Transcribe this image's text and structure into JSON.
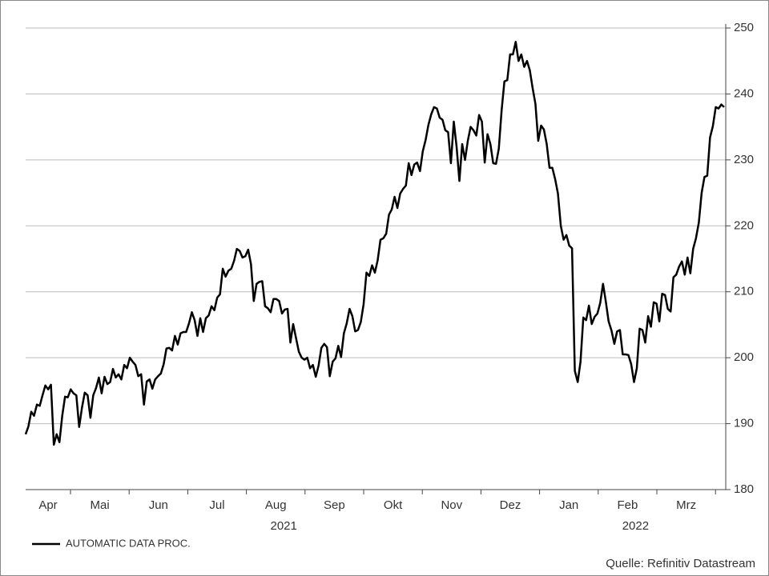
{
  "chart_data": {
    "type": "line",
    "series": [
      {
        "name": "AUTOMATIC DATA PROC.",
        "color": "#000000",
        "values": [
          188.4,
          189.6,
          191.8,
          191.2,
          192.9,
          192.7,
          194.3,
          195.8,
          195.2,
          195.9,
          186.8,
          188.4,
          187.2,
          191.2,
          194.1,
          194.0,
          195.2,
          194.6,
          194.3,
          189.5,
          192.4,
          194.7,
          194.3,
          190.9,
          194.3,
          195.4,
          197.0,
          194.6,
          197.1,
          196.0,
          196.3,
          198.3,
          197.0,
          197.5,
          196.7,
          198.9,
          198.4,
          200.0,
          199.4,
          198.9,
          197.2,
          197.5,
          192.9,
          196.4,
          196.7,
          195.3,
          196.7,
          197.2,
          197.6,
          199.0,
          201.4,
          201.5,
          201.1,
          203.3,
          202.0,
          203.7,
          203.9,
          203.9,
          205.2,
          206.9,
          205.7,
          203.3,
          206.0,
          203.9,
          206.0,
          206.4,
          207.8,
          207.2,
          209.1,
          209.6,
          213.5,
          212.3,
          213.2,
          213.5,
          214.7,
          216.5,
          216.2,
          215.2,
          215.4,
          216.4,
          214.2,
          208.6,
          211.2,
          211.5,
          211.6,
          207.8,
          207.5,
          206.9,
          208.9,
          208.9,
          208.6,
          206.7,
          207.3,
          207.4,
          202.3,
          205.1,
          203.0,
          200.9,
          200.0,
          199.7,
          200.0,
          198.4,
          198.9,
          197.1,
          198.8,
          201.5,
          202.1,
          201.6,
          197.2,
          199.4,
          199.9,
          201.8,
          200.1,
          203.7,
          205.2,
          207.4,
          206.3,
          204.0,
          204.2,
          205.4,
          208.1,
          212.9,
          212.4,
          214.0,
          212.9,
          214.8,
          217.9,
          218.1,
          218.8,
          221.7,
          222.5,
          224.4,
          222.7,
          224.9,
          225.6,
          226.1,
          229.5,
          227.7,
          229.3,
          229.6,
          228.3,
          231.3,
          233.0,
          235.3,
          236.9,
          238.0,
          237.8,
          236.4,
          236.1,
          234.5,
          234.2,
          229.5,
          235.8,
          232.0,
          226.8,
          232.4,
          230.0,
          232.9,
          235.0,
          234.5,
          233.7,
          236.8,
          235.8,
          229.6,
          233.9,
          232.4,
          229.5,
          229.4,
          231.7,
          237.5,
          241.9,
          242.1,
          246.0,
          246.0,
          247.9,
          245.0,
          246.0,
          244.1,
          245.0,
          243.6,
          240.9,
          238.5,
          232.9,
          235.2,
          234.6,
          232.4,
          228.8,
          228.8,
          227.1,
          224.9,
          220.0,
          217.9,
          218.6,
          217.0,
          216.6,
          198.0,
          196.3,
          199.4,
          206.1,
          205.7,
          207.9,
          205.1,
          206.2,
          206.7,
          208.3,
          211.2,
          208.5,
          205.5,
          204.1,
          202.1,
          204.0,
          204.2,
          200.5,
          200.5,
          200.4,
          199.0,
          196.3,
          198.4,
          204.4,
          204.2,
          202.3,
          206.3,
          204.7,
          208.4,
          208.2,
          205.5,
          209.7,
          209.5,
          207.4,
          207.0,
          212.2,
          212.6,
          213.8,
          214.6,
          212.6,
          215.2,
          212.8,
          216.5,
          218.1,
          220.5,
          225.0,
          227.4,
          227.6,
          233.4,
          235.1,
          238.0,
          237.8,
          238.4,
          238.0
        ]
      }
    ],
    "months": [
      "Apr",
      "Mai",
      "Jun",
      "Jul",
      "Aug",
      "Sep",
      "Okt",
      "Nov",
      "Dez",
      "Jan",
      "Feb",
      "Mrz"
    ],
    "years": [
      "2021",
      "2022"
    ],
    "ylim": [
      180,
      250
    ],
    "yticks": [
      180,
      190,
      200,
      210,
      220,
      230,
      240,
      250
    ],
    "grid": true,
    "legend": "bottom-left",
    "source": "Quelle: Refinitiv Datastream"
  }
}
